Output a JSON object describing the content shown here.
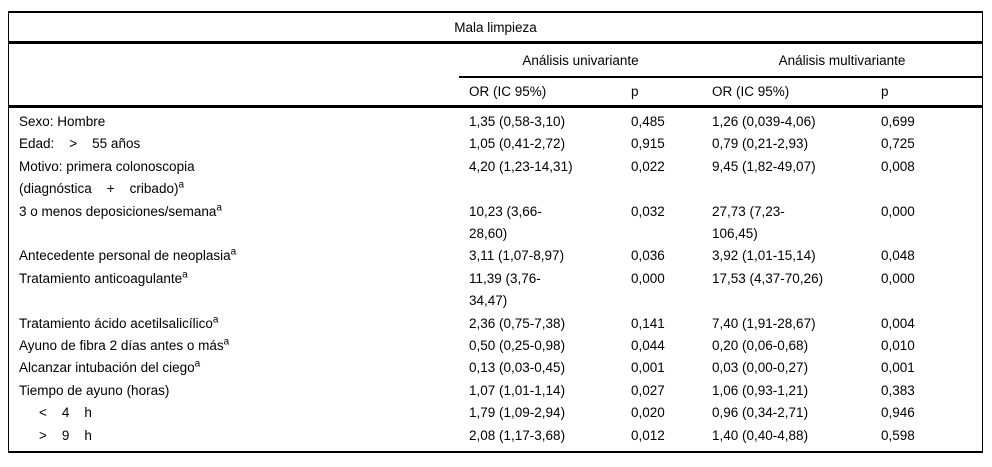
{
  "table": {
    "title": "Mala limpieza",
    "header": {
      "group_univariante": "Análisis univariante",
      "group_multivariante": "Análisis multivariante",
      "or_label": "OR (IC 95%)",
      "p_label": "p"
    },
    "footnote_marker": "a",
    "colors": {
      "text": "#000000",
      "background": "#ffffff",
      "rule": "#000000"
    },
    "rows": [
      {
        "label": "Sexo: Hombre",
        "sup": "",
        "u_or": "1,35 (0,58-3,10)",
        "u_p": "0,485",
        "m_or": "1,26 (0,039-4,06)",
        "m_p": "0,699"
      },
      {
        "label": "Edad:    >    55 años",
        "sup": "",
        "u_or": "1,05 (0,41-2,72)",
        "u_p": "0,915",
        "m_or": "0,79 (0,21-2,93)",
        "m_p": "0,725"
      },
      {
        "label": "Motivo: primera colonoscopia\n(diagnóstica    +    cribado)",
        "sup": "a",
        "u_or": "4,20 (1,23-14,31)",
        "u_p": "0,022",
        "m_or": "9,45 (1,82-49,07)",
        "m_p": "0,008"
      },
      {
        "label": "3 o menos deposiciones/semana",
        "sup": "a",
        "u_or": "10,23 (3,66-\n28,60)",
        "u_p": "0,032",
        "m_or": "27,73 (7,23-\n106,45)",
        "m_p": "0,000"
      },
      {
        "label": "Antecedente personal de neoplasia",
        "sup": "a",
        "u_or": "3,11 (1,07-8,97)",
        "u_p": "0,036",
        "m_or": "3,92 (1,01-15,14)",
        "m_p": "0,048"
      },
      {
        "label": "Tratamiento anticoagulante",
        "sup": "a",
        "u_or": "11,39 (3,76-\n34,47)",
        "u_p": "0,000",
        "m_or": "17,53 (4,37-70,26)",
        "m_p": "0,000"
      },
      {
        "label": "Tratamiento ácido acetilsalicílico",
        "sup": "a",
        "u_or": "2,36 (0,75-7,38)",
        "u_p": "0,141",
        "m_or": "7,40 (1,91-28,67)",
        "m_p": "0,004"
      },
      {
        "label": "Ayuno de fibra 2 días antes o más",
        "sup": "a",
        "u_or": "0,50 (0,25-0,98)",
        "u_p": "0,044",
        "m_or": "0,20 (0,06-0,68)",
        "m_p": "0,010"
      },
      {
        "label": "Alcanzar intubación del ciego",
        "sup": "a",
        "u_or": "0,13 (0,03-0,45)",
        "u_p": "0,001",
        "m_or": "0,03 (0,00-0,27)",
        "m_p": "0,001"
      },
      {
        "label": "Tiempo de ayuno (horas)",
        "sup": "",
        "u_or": "1,07 (1,01-1,14)",
        "u_p": "0,027",
        "m_or": "1,06 (0,93-1,21)",
        "m_p": "0,383"
      },
      {
        "label": "<    4    h",
        "sup": "",
        "u_or": "1,79 (1,09-2,94)",
        "u_p": "0,020",
        "m_or": "0,96 (0,34-2,71)",
        "m_p": "0,946"
      },
      {
        "label": ">    9    h",
        "sup": "",
        "u_or": "2,08 (1,17-3,68)",
        "u_p": "0,012",
        "m_or": "1,40 (0,40-4,88)",
        "m_p": "0,598"
      }
    ]
  }
}
